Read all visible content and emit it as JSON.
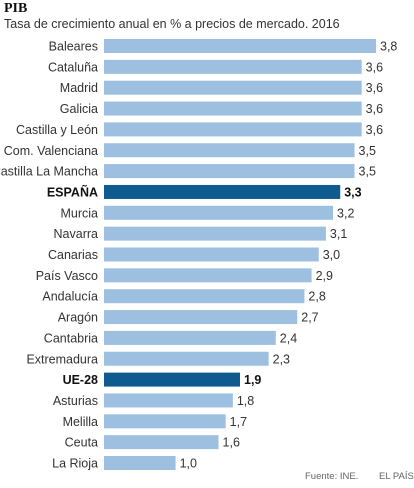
{
  "title": "PIB",
  "subtitle": "Tasa de crecimiento anual en % a precios de mercado. 2016",
  "source": "Fuente: INE.",
  "brand": "EL PAÍS",
  "colors": {
    "bar": "#9dbfe0",
    "highlight": "#0f5a8e",
    "text": "#333333",
    "label_bold": "#111111"
  },
  "chart_data": {
    "type": "bar",
    "orientation": "horizontal",
    "title": "PIB",
    "subtitle": "Tasa de crecimiento anual en % a precios de mercado. 2016",
    "categories": [
      "Baleares",
      "Cataluña",
      "Madrid",
      "Galicia",
      "Castilla y León",
      "Com. Valenciana",
      "Castilla La Mancha",
      "ESPAÑA",
      "Murcia",
      "Navarra",
      "Canarias",
      "País Vasco",
      "Andalucía",
      "Aragón",
      "Cantabria",
      "Extremadura",
      "UE-28",
      "Asturias",
      "Melilla",
      "Ceuta",
      "La Rioja"
    ],
    "values": [
      3.8,
      3.6,
      3.6,
      3.6,
      3.6,
      3.5,
      3.5,
      3.3,
      3.2,
      3.1,
      3.0,
      2.9,
      2.8,
      2.7,
      2.4,
      2.3,
      1.9,
      1.8,
      1.7,
      1.6,
      1.0
    ],
    "value_labels": [
      "3,8",
      "3,6",
      "3,6",
      "3,6",
      "3,6",
      "3,5",
      "3,5",
      "3,3",
      "3,2",
      "3,1",
      "3,0",
      "2,9",
      "2,8",
      "2,7",
      "2,4",
      "2,3",
      "1,9",
      "1,8",
      "1,7",
      "1,6",
      "1,0"
    ],
    "highlighted": [
      "ESPAÑA",
      "UE-28"
    ],
    "xlim": [
      0,
      3.8
    ],
    "grid": false,
    "legend": "none"
  }
}
